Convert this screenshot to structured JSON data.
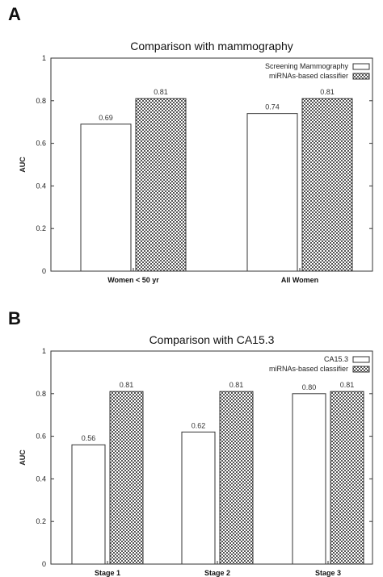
{
  "chart_data": [
    {
      "panel": "A",
      "type": "bar",
      "title": "Comparison with mammography",
      "ylabel": "AUC",
      "ylim": [
        0,
        1
      ],
      "yticks": [
        "0",
        "0.2",
        "0.4",
        "0.6",
        "0.8",
        "1"
      ],
      "categories": [
        "Women < 50 yr",
        "All Women"
      ],
      "legend_position": "top-right",
      "series": [
        {
          "name": "Screening Mammography",
          "style": "open",
          "values": [
            0.69,
            0.74
          ],
          "labels": [
            "0.69",
            "0.74"
          ]
        },
        {
          "name": "miRNAs-based classifier",
          "style": "hatched",
          "values": [
            0.81,
            0.81
          ],
          "labels": [
            "0.81",
            "0.81"
          ]
        }
      ]
    },
    {
      "panel": "B",
      "type": "bar",
      "title": "Comparison with CA15.3",
      "ylabel": "AUC",
      "ylim": [
        0,
        1
      ],
      "yticks": [
        "0",
        "0.2",
        "0.4",
        "0.6",
        "0.8",
        "1"
      ],
      "categories": [
        "Stage 1",
        "Stage 2",
        "Stage 3"
      ],
      "legend_position": "top-right",
      "series": [
        {
          "name": "CA15.3",
          "style": "open",
          "values": [
            0.56,
            0.62,
            0.8
          ],
          "labels": [
            "0.56",
            "0.62",
            "0.80"
          ]
        },
        {
          "name": "miRNAs-based classifier",
          "style": "hatched",
          "values": [
            0.81,
            0.81,
            0.81
          ],
          "labels": [
            "0.81",
            "0.81",
            "0.81"
          ]
        }
      ]
    }
  ]
}
